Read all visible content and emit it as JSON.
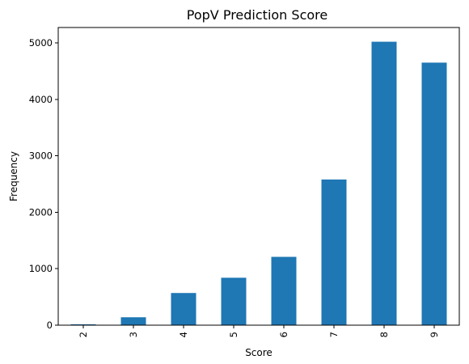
{
  "chart_data": {
    "type": "bar",
    "title": "PopV Prediction Score",
    "xlabel": "Score",
    "ylabel": "Frequency",
    "categories": [
      "2",
      "3",
      "4",
      "5",
      "6",
      "7",
      "8",
      "9"
    ],
    "values": [
      15,
      140,
      570,
      840,
      1210,
      2580,
      5020,
      4650
    ],
    "ylim": [
      0,
      5272
    ],
    "yticks": [
      0,
      1000,
      2000,
      3000,
      4000,
      5000
    ],
    "bar_color": "#1f77b4",
    "grid": false,
    "legend": "none"
  }
}
